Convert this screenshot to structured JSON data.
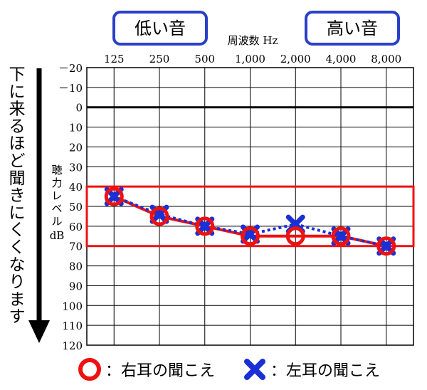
{
  "chart_data": {
    "type": "line",
    "xlabel": "周波数 Hz",
    "ylabel": "聴力レベル dB",
    "categories": [
      "125",
      "250",
      "500",
      "1,000",
      "2,000",
      "4,000",
      "8,000"
    ],
    "ylim": [
      -20,
      120
    ],
    "y_ticks": [
      "－20",
      "－10",
      "0",
      "10",
      "20",
      "30",
      "40",
      "50",
      "60",
      "70",
      "80",
      "90",
      "100",
      "110",
      "120"
    ],
    "y_tick_values": [
      -20,
      -10,
      0,
      10,
      20,
      30,
      40,
      50,
      60,
      70,
      80,
      90,
      100,
      110,
      120
    ],
    "y_inverted": true,
    "grid": true,
    "series": [
      {
        "name": "右耳の聞こえ",
        "marker": "circle",
        "values": [
          45,
          55,
          60,
          65,
          65,
          65,
          70
        ],
        "color": "#ee1111"
      },
      {
        "name": "左耳の聞こえ",
        "marker": "cross",
        "values": [
          45,
          54,
          60,
          64,
          59,
          65,
          70
        ],
        "color": "#1b2fd6"
      }
    ],
    "highlight_range": [
      40,
      70
    ],
    "highlight_color": "#ee1111",
    "low_label": "低い音",
    "high_label": "高い音",
    "direction_note": "下に来るほど聞きにくくなります",
    "legend": {
      "position": "bottom",
      "right_label": "：右耳の聞こえ",
      "left_label": "：左耳の聞こえ"
    },
    "button_border_color": "#2a3fc8"
  }
}
